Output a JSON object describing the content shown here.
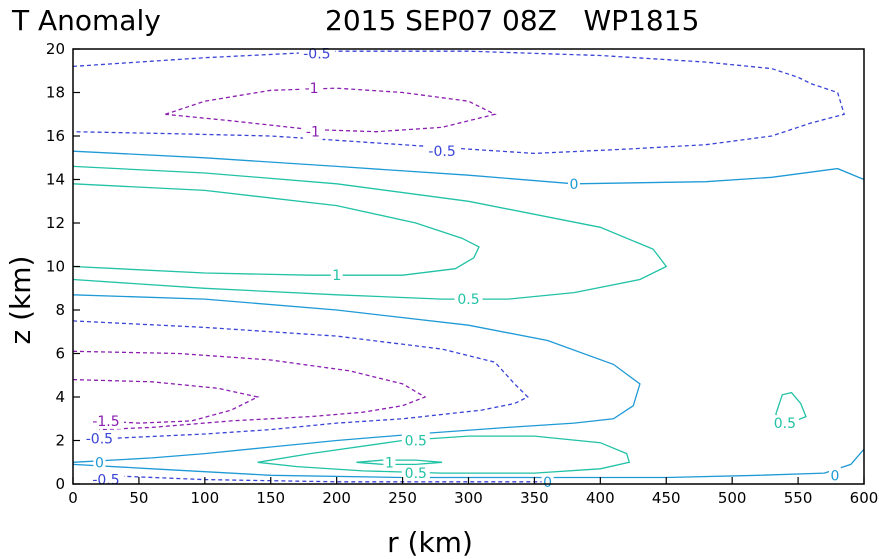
{
  "chart_data": {
    "type": "contour",
    "title_left": "T Anomaly",
    "title_right": "2015 SEP07 08Z   WP1815",
    "xlabel": "r (km)",
    "ylabel": "z (km)",
    "xlim": [
      0,
      600
    ],
    "ylim": [
      0,
      20
    ],
    "xticks": [
      0,
      50,
      100,
      150,
      200,
      250,
      300,
      350,
      400,
      450,
      500,
      550,
      600
    ],
    "yticks": [
      0,
      2,
      4,
      6,
      8,
      10,
      12,
      14,
      16,
      18,
      20
    ],
    "level_colors": {
      "-1.5": "#8a1fb0",
      "-1": "#8a1fb0",
      "-0.5": "#3a44d6",
      "0": "#1f9ad6",
      "0.5": "#22c2a6",
      "1": "#22c2a6"
    },
    "contours": [
      {
        "level": -0.5,
        "dashed": true,
        "points": [
          [
            0,
            19.2
          ],
          [
            100,
            19.6
          ],
          [
            200,
            19.9
          ],
          [
            300,
            19.9
          ],
          [
            400,
            19.7
          ],
          [
            480,
            19.4
          ],
          [
            530,
            19.1
          ],
          [
            550,
            18.7
          ],
          [
            560,
            18.4
          ],
          [
            580,
            18.0
          ],
          [
            583,
            17.4
          ],
          [
            585,
            17.0
          ],
          [
            560,
            16.6
          ],
          [
            530,
            16.0
          ],
          [
            480,
            15.6
          ],
          [
            420,
            15.4
          ],
          [
            350,
            15.2
          ],
          [
            300,
            15.4
          ],
          [
            250,
            15.6
          ],
          [
            200,
            15.8
          ],
          [
            150,
            16.0
          ],
          [
            80,
            16.1
          ],
          [
            0,
            16.2
          ]
        ]
      },
      {
        "level": -1,
        "dashed": true,
        "points": [
          [
            70,
            17.0
          ],
          [
            100,
            17.6
          ],
          [
            150,
            18.1
          ],
          [
            200,
            18.2
          ],
          [
            250,
            18.0
          ],
          [
            300,
            17.6
          ],
          [
            320,
            17.0
          ],
          [
            280,
            16.4
          ],
          [
            230,
            16.2
          ],
          [
            180,
            16.3
          ],
          [
            120,
            16.7
          ],
          [
            70,
            17.0
          ]
        ]
      },
      {
        "level": 0,
        "dashed": false,
        "points": [
          [
            0,
            15.3
          ],
          [
            100,
            15.0
          ],
          [
            200,
            14.6
          ],
          [
            300,
            14.2
          ],
          [
            380,
            13.8
          ],
          [
            480,
            13.9
          ],
          [
            530,
            14.1
          ],
          [
            580,
            14.5
          ],
          [
            600,
            14.0
          ]
        ]
      },
      {
        "level": 0.5,
        "dashed": false,
        "points": [
          [
            0,
            14.6
          ],
          [
            100,
            14.3
          ],
          [
            200,
            13.8
          ],
          [
            300,
            13.0
          ],
          [
            400,
            11.8
          ],
          [
            440,
            10.8
          ],
          [
            450,
            10.0
          ],
          [
            430,
            9.4
          ],
          [
            380,
            8.8
          ],
          [
            330,
            8.5
          ],
          [
            280,
            8.5
          ],
          [
            200,
            8.7
          ],
          [
            100,
            9.0
          ],
          [
            0,
            9.4
          ]
        ]
      },
      {
        "level": 1,
        "dashed": false,
        "points": [
          [
            0,
            13.8
          ],
          [
            100,
            13.5
          ],
          [
            200,
            12.8
          ],
          [
            260,
            12.0
          ],
          [
            295,
            11.3
          ],
          [
            308,
            10.9
          ],
          [
            304,
            10.4
          ],
          [
            290,
            9.9
          ],
          [
            250,
            9.6
          ],
          [
            180,
            9.6
          ],
          [
            100,
            9.7
          ],
          [
            0,
            10.0
          ]
        ]
      },
      {
        "level": 0,
        "dashed": false,
        "points": [
          [
            0,
            8.7
          ],
          [
            100,
            8.5
          ],
          [
            200,
            8.0
          ],
          [
            300,
            7.3
          ],
          [
            360,
            6.6
          ],
          [
            410,
            5.5
          ],
          [
            430,
            4.6
          ],
          [
            425,
            3.6
          ],
          [
            410,
            3.0
          ],
          [
            380,
            2.8
          ],
          [
            330,
            2.6
          ],
          [
            260,
            2.3
          ],
          [
            200,
            2.0
          ],
          [
            150,
            1.7
          ],
          [
            100,
            1.4
          ],
          [
            60,
            1.2
          ],
          [
            0,
            1.0
          ]
        ]
      },
      {
        "level": -0.5,
        "dashed": true,
        "points": [
          [
            0,
            7.5
          ],
          [
            100,
            7.2
          ],
          [
            200,
            6.8
          ],
          [
            280,
            6.2
          ],
          [
            320,
            5.6
          ],
          [
            335,
            4.6
          ],
          [
            345,
            4.0
          ],
          [
            335,
            3.7
          ],
          [
            310,
            3.4
          ],
          [
            250,
            3.0
          ],
          [
            200,
            2.8
          ],
          [
            150,
            2.5
          ],
          [
            100,
            2.3
          ],
          [
            30,
            2.1
          ]
        ]
      },
      {
        "level": -1,
        "dashed": true,
        "points": [
          [
            0,
            6.1
          ],
          [
            80,
            6.0
          ],
          [
            150,
            5.7
          ],
          [
            210,
            5.2
          ],
          [
            250,
            4.6
          ],
          [
            267,
            4.0
          ],
          [
            250,
            3.6
          ],
          [
            220,
            3.3
          ],
          [
            180,
            3.1
          ],
          [
            120,
            2.9
          ],
          [
            60,
            2.6
          ],
          [
            20,
            2.5
          ]
        ]
      },
      {
        "level": -1.5,
        "dashed": true,
        "points": [
          [
            0,
            4.8
          ],
          [
            60,
            4.7
          ],
          [
            110,
            4.4
          ],
          [
            140,
            4.0
          ],
          [
            120,
            3.4
          ],
          [
            90,
            2.9
          ],
          [
            50,
            2.8
          ],
          [
            20,
            2.9
          ]
        ]
      },
      {
        "level": 0.5,
        "dashed": false,
        "points": [
          [
            140,
            1.0
          ],
          [
            180,
            1.4
          ],
          [
            250,
            2.0
          ],
          [
            300,
            2.2
          ],
          [
            350,
            2.2
          ],
          [
            400,
            1.9
          ],
          [
            420,
            1.4
          ],
          [
            422,
            1.0
          ],
          [
            400,
            0.7
          ],
          [
            350,
            0.5
          ],
          [
            280,
            0.5
          ],
          [
            220,
            0.6
          ],
          [
            170,
            0.8
          ],
          [
            140,
            1.0
          ]
        ]
      },
      {
        "level": 1,
        "dashed": false,
        "points": [
          [
            215,
            1.0
          ],
          [
            235,
            1.1
          ],
          [
            260,
            1.1
          ],
          [
            280,
            1.0
          ],
          [
            260,
            0.9
          ],
          [
            235,
            0.9
          ],
          [
            215,
            1.0
          ]
        ]
      },
      {
        "level": 0,
        "dashed": false,
        "points": [
          [
            0,
            0.9
          ],
          [
            60,
            0.7
          ],
          [
            150,
            0.4
          ],
          [
            250,
            0.3
          ],
          [
            350,
            0.3
          ],
          [
            450,
            0.3
          ],
          [
            520,
            0.4
          ],
          [
            570,
            0.5
          ],
          [
            590,
            0.9
          ],
          [
            600,
            1.6
          ]
        ]
      },
      {
        "level": -0.5,
        "dashed": true,
        "points": [
          [
            20,
            0.4
          ],
          [
            100,
            0.2
          ],
          [
            200,
            0.1
          ],
          [
            300,
            0.1
          ],
          [
            360,
            0.1
          ]
        ]
      },
      {
        "level": 0.5,
        "dashed": false,
        "points": [
          [
            533,
            3.2
          ],
          [
            538,
            4.1
          ],
          [
            545,
            4.2
          ],
          [
            552,
            3.7
          ],
          [
            556,
            3.1
          ],
          [
            548,
            2.9
          ],
          [
            538,
            2.9
          ],
          [
            533,
            3.2
          ]
        ]
      }
    ],
    "labels": [
      {
        "text": "-0.5",
        "level": -0.5,
        "at": [
          185,
          19.8
        ]
      },
      {
        "text": "-1",
        "level": -1,
        "at": [
          181,
          18.2
        ]
      },
      {
        "text": "-1",
        "level": -1,
        "at": [
          182,
          16.2
        ]
      },
      {
        "text": "-0.5",
        "level": -0.5,
        "at": [
          280,
          15.3
        ]
      },
      {
        "text": "0",
        "level": 0,
        "at": [
          380,
          13.8
        ]
      },
      {
        "text": "1",
        "level": 1,
        "at": [
          200,
          9.6
        ]
      },
      {
        "text": "0.5",
        "level": 0.5,
        "at": [
          300,
          8.5
        ]
      },
      {
        "text": "-1.5",
        "level": -1.5,
        "at": [
          25,
          2.9
        ]
      },
      {
        "text": "-0.5",
        "level": -0.5,
        "at": [
          20,
          2.1
        ]
      },
      {
        "text": "0.5",
        "level": 0.5,
        "at": [
          260,
          2.0
        ]
      },
      {
        "text": "0",
        "level": 0,
        "at": [
          20,
          1.0
        ]
      },
      {
        "text": "1",
        "level": 1,
        "at": [
          240,
          1.0
        ]
      },
      {
        "text": "0.5",
        "level": 0.5,
        "at": [
          260,
          0.5
        ]
      },
      {
        "text": "-0.5",
        "level": -0.5,
        "at": [
          25,
          0.2
        ]
      },
      {
        "text": "0",
        "level": 0,
        "at": [
          360,
          0.1
        ]
      },
      {
        "text": "0",
        "level": 0,
        "at": [
          578,
          0.4
        ]
      },
      {
        "text": "0.5",
        "level": 0.5,
        "at": [
          540,
          2.8
        ]
      }
    ]
  }
}
